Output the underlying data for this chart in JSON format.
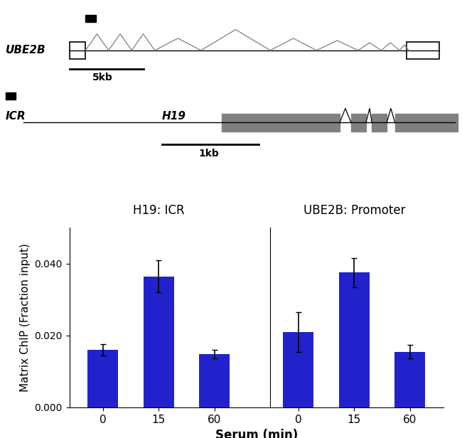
{
  "bar_color": "#2222CC",
  "h19_icr": {
    "values": [
      0.016,
      0.0365,
      0.0148
    ],
    "errors": [
      0.0015,
      0.0045,
      0.0012
    ],
    "labels": [
      "0",
      "15",
      "60"
    ]
  },
  "ube2b_promoter": {
    "values": [
      0.021,
      0.0375,
      0.0155
    ],
    "errors": [
      0.0055,
      0.004,
      0.0018
    ],
    "labels": [
      "0",
      "15",
      "60"
    ]
  },
  "ylabel": "Matrix ChIP (Fraction input)",
  "xlabel": "Serum (min)",
  "ylim": [
    0.0,
    0.05
  ],
  "yticks": [
    0.0,
    0.02,
    0.04
  ],
  "group1_label": "H19: ICR",
  "group2_label": "UBE2B: Promoter",
  "bar_width": 0.55,
  "group1_label_fontsize": 12,
  "group2_label_fontsize": 12
}
